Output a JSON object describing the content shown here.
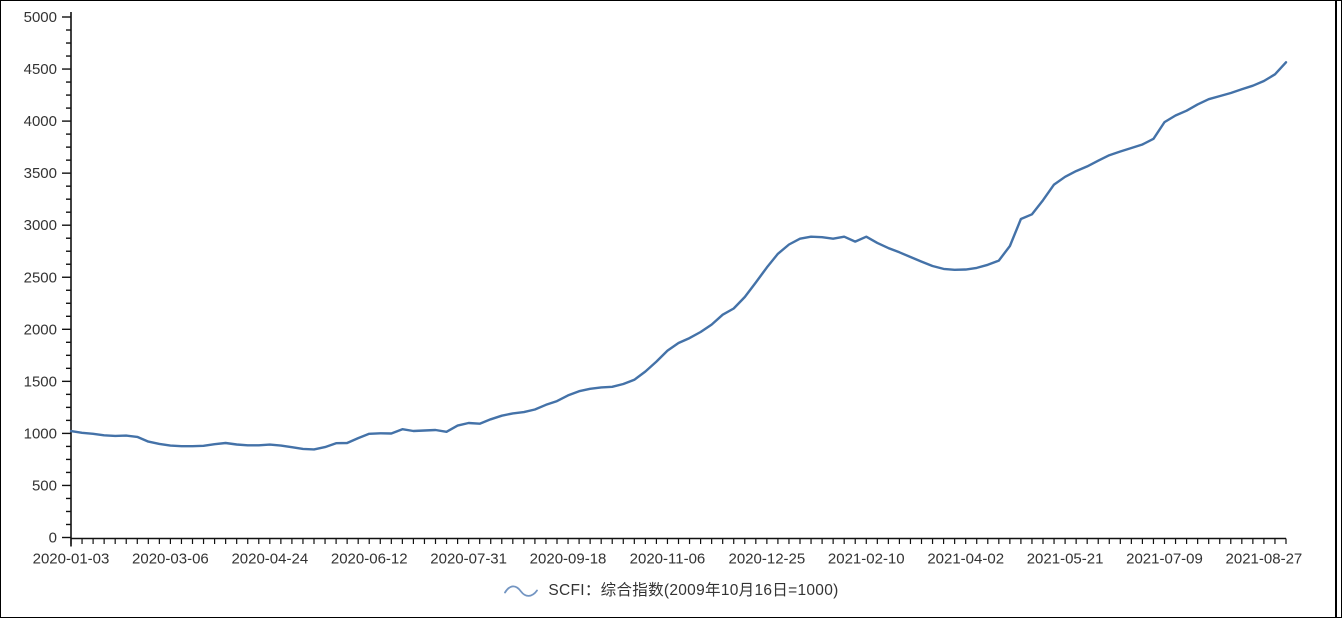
{
  "window": {
    "background": "#ffffff",
    "border_color": "#000000"
  },
  "legend": {
    "label": "SCFI：综合指数(2009年10月16日=1000)",
    "marker": "wave-squiggle",
    "marker_color": "#7395c2"
  },
  "chart_data": {
    "type": "line",
    "title": "",
    "xlabel": "",
    "ylabel": "",
    "ylim": [
      0,
      5000
    ],
    "y_ticks": [
      0,
      500,
      1000,
      1500,
      2000,
      2500,
      3000,
      3500,
      4000,
      4500,
      5000
    ],
    "y_minor_step": 125,
    "grid": false,
    "legend_position": "bottom-center",
    "axis_color": "#111111",
    "label_color": "#333333",
    "x_labels": [
      "2020-01-03",
      "2020-03-06",
      "2020-04-24",
      "2020-06-12",
      "2020-07-31",
      "2020-09-18",
      "2020-11-06",
      "2020-12-25",
      "2021-02-10",
      "2021-04-02",
      "2021-05-21",
      "2021-07-09",
      "2021-08-27"
    ],
    "x_label_indices": [
      0,
      9,
      18,
      27,
      36,
      45,
      54,
      63,
      72,
      81,
      90,
      99,
      108
    ],
    "series": [
      {
        "name": "SCFI：综合指数(2009年10月16日=1000)",
        "color": "#4472a8",
        "values": [
          1022,
          1006,
          996,
          982,
          976,
          979,
          966,
          921,
          899,
          883,
          877,
          877,
          881,
          896,
          908,
          893,
          886,
          886,
          892,
          883,
          867,
          851,
          846,
          868,
          906,
          908,
          955,
          996,
          1001,
          999,
          1040,
          1023,
          1028,
          1033,
          1015,
          1075,
          1100,
          1093,
          1135,
          1170,
          1192,
          1205,
          1230,
          1275,
          1310,
          1365,
          1405,
          1428,
          1442,
          1448,
          1475,
          1515,
          1595,
          1690,
          1795,
          1868,
          1915,
          1974,
          2045,
          2140,
          2200,
          2310,
          2450,
          2595,
          2725,
          2815,
          2870,
          2890,
          2885,
          2870,
          2890,
          2842,
          2890,
          2830,
          2780,
          2740,
          2695,
          2650,
          2608,
          2580,
          2572,
          2574,
          2590,
          2620,
          2660,
          2800,
          3060,
          3105,
          3240,
          3390,
          3465,
          3520,
          3565,
          3620,
          3672,
          3708,
          3742,
          3775,
          3830,
          3990,
          4054,
          4100,
          4160,
          4210,
          4240,
          4270,
          4305,
          4340,
          4385,
          4450,
          4565
        ]
      }
    ]
  }
}
